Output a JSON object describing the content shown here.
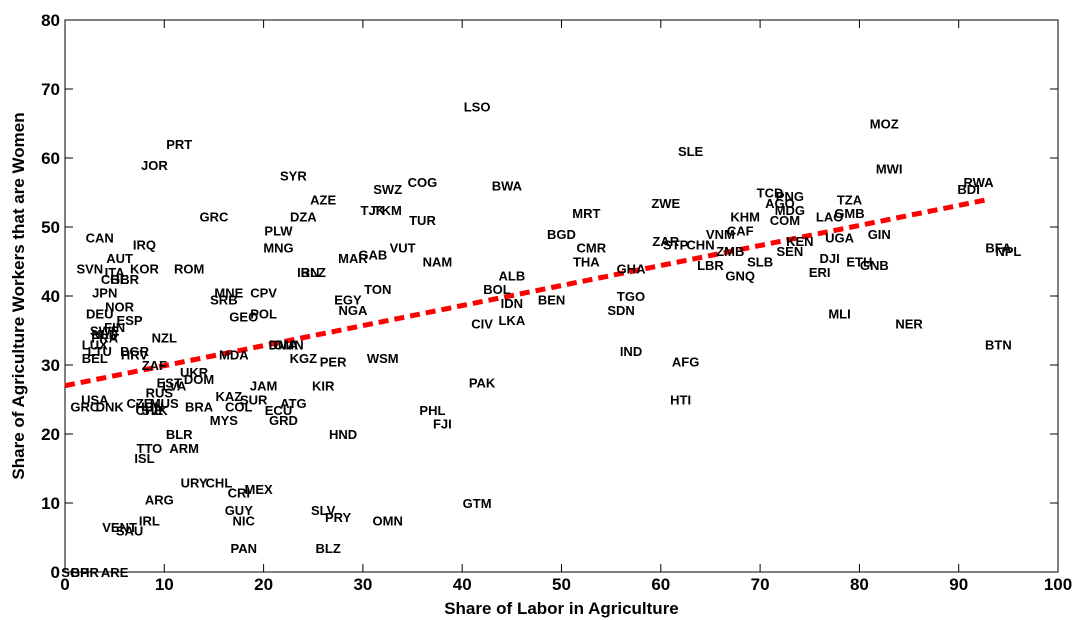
{
  "chart_data": {
    "type": "scatter",
    "title": "",
    "xlabel": "Share of Labor in Agriculture",
    "ylabel": "Share of Agriculture Workers that are Women",
    "xlim": [
      0,
      100
    ],
    "ylim": [
      0,
      80
    ],
    "xticks": [
      0,
      10,
      20,
      30,
      40,
      50,
      60,
      70,
      80,
      90,
      100
    ],
    "yticks": [
      0,
      10,
      20,
      30,
      40,
      50,
      60,
      70,
      80
    ],
    "grid": false,
    "legend": "none",
    "trendline": {
      "x": [
        0,
        93
      ],
      "y": [
        27,
        54
      ],
      "color": "#ff0000",
      "style": "dashed"
    },
    "points": [
      {
        "label": "LSO",
        "x": 41.5,
        "y": 67.5
      },
      {
        "label": "MOZ",
        "x": 82.5,
        "y": 65
      },
      {
        "label": "PRT",
        "x": 11.5,
        "y": 62
      },
      {
        "label": "SLE",
        "x": 63,
        "y": 61
      },
      {
        "label": "JOR",
        "x": 9,
        "y": 59
      },
      {
        "label": "MWI",
        "x": 83,
        "y": 58.5
      },
      {
        "label": "SYR",
        "x": 23,
        "y": 57.5
      },
      {
        "label": "COG",
        "x": 36,
        "y": 56.5
      },
      {
        "label": "RWA",
        "x": 92,
        "y": 56.5
      },
      {
        "label": "BDI",
        "x": 91,
        "y": 55.5
      },
      {
        "label": "BWA",
        "x": 44.5,
        "y": 56
      },
      {
        "label": "SWZ",
        "x": 32.5,
        "y": 55.5
      },
      {
        "label": "TCD",
        "x": 71,
        "y": 55
      },
      {
        "label": "AZE",
        "x": 26,
        "y": 54
      },
      {
        "label": "PNG",
        "x": 73,
        "y": 54.5
      },
      {
        "label": "ZWE",
        "x": 60.5,
        "y": 53.5
      },
      {
        "label": "AGO",
        "x": 72,
        "y": 53.5
      },
      {
        "label": "TZA",
        "x": 79,
        "y": 54
      },
      {
        "label": "TJK",
        "x": 31,
        "y": 52.5
      },
      {
        "label": "TKM",
        "x": 32.5,
        "y": 52.5
      },
      {
        "label": "MDG",
        "x": 73,
        "y": 52.5
      },
      {
        "label": "MRT",
        "x": 52.5,
        "y": 52
      },
      {
        "label": "GMB",
        "x": 79,
        "y": 52
      },
      {
        "label": "LAO",
        "x": 77,
        "y": 51.5
      },
      {
        "label": "DZA",
        "x": 24,
        "y": 51.5
      },
      {
        "label": "GRC",
        "x": 15,
        "y": 51.5
      },
      {
        "label": "KHM",
        "x": 68.5,
        "y": 51.5
      },
      {
        "label": "TUR",
        "x": 36,
        "y": 51
      },
      {
        "label": "COM",
        "x": 72.5,
        "y": 51
      },
      {
        "label": "PLW",
        "x": 21.5,
        "y": 49.5
      },
      {
        "label": "CAF",
        "x": 68,
        "y": 49.5
      },
      {
        "label": "GIN",
        "x": 82,
        "y": 49
      },
      {
        "label": "BGD",
        "x": 50,
        "y": 49
      },
      {
        "label": "CAN",
        "x": 3.5,
        "y": 48.5
      },
      {
        "label": "UGA",
        "x": 78,
        "y": 48.5
      },
      {
        "label": "VNM",
        "x": 66,
        "y": 49
      },
      {
        "label": "ZAR",
        "x": 60.5,
        "y": 48
      },
      {
        "label": "STP",
        "x": 61.5,
        "y": 47.5
      },
      {
        "label": "KEN",
        "x": 74,
        "y": 48
      },
      {
        "label": "CHN",
        "x": 64,
        "y": 47.5
      },
      {
        "label": "IRQ",
        "x": 8,
        "y": 47.5
      },
      {
        "label": "CMR",
        "x": 53,
        "y": 47
      },
      {
        "label": "MNG",
        "x": 21.5,
        "y": 47
      },
      {
        "label": "VUT",
        "x": 34,
        "y": 47
      },
      {
        "label": "BFA",
        "x": 94,
        "y": 47
      },
      {
        "label": "NPL",
        "x": 95,
        "y": 46.5
      },
      {
        "label": "ZMB",
        "x": 67,
        "y": 46.5
      },
      {
        "label": "SEN",
        "x": 73,
        "y": 46.5
      },
      {
        "label": "GAB",
        "x": 31,
        "y": 46
      },
      {
        "label": "MAR",
        "x": 29,
        "y": 45.5
      },
      {
        "label": "AUT",
        "x": 5.5,
        "y": 45.5
      },
      {
        "label": "DJI",
        "x": 77,
        "y": 45.5
      },
      {
        "label": "THA",
        "x": 52.5,
        "y": 45
      },
      {
        "label": "NAM",
        "x": 37.5,
        "y": 45
      },
      {
        "label": "SLB",
        "x": 70,
        "y": 45
      },
      {
        "label": "ETH",
        "x": 80,
        "y": 45
      },
      {
        "label": "GNB",
        "x": 81.5,
        "y": 44.5
      },
      {
        "label": "LBR",
        "x": 65,
        "y": 44.5
      },
      {
        "label": "GHA",
        "x": 57,
        "y": 44
      },
      {
        "label": "ROM",
        "x": 12.5,
        "y": 44
      },
      {
        "label": "SVN",
        "x": 2.5,
        "y": 44
      },
      {
        "label": "KOR",
        "x": 8,
        "y": 44
      },
      {
        "label": "ITA",
        "x": 5,
        "y": 43.5
      },
      {
        "label": "IRN",
        "x": 24.5,
        "y": 43.5
      },
      {
        "label": "BLZ",
        "x": 25,
        "y": 43.5
      },
      {
        "label": "ERI",
        "x": 76,
        "y": 43.5
      },
      {
        "label": "GNQ",
        "x": 68,
        "y": 43
      },
      {
        "label": "ALB",
        "x": 45,
        "y": 43
      },
      {
        "label": "CHE",
        "x": 5,
        "y": 42.5
      },
      {
        "label": "GBR",
        "x": 6,
        "y": 42.5
      },
      {
        "label": "BOL",
        "x": 43.5,
        "y": 41
      },
      {
        "label": "TON",
        "x": 31.5,
        "y": 41
      },
      {
        "label": "JPN",
        "x": 4,
        "y": 40.5
      },
      {
        "label": "MNE",
        "x": 16.5,
        "y": 40.5
      },
      {
        "label": "CPV",
        "x": 20,
        "y": 40.5
      },
      {
        "label": "TGO",
        "x": 57,
        "y": 40
      },
      {
        "label": "SRB",
        "x": 16,
        "y": 39.5
      },
      {
        "label": "BEN",
        "x": 49,
        "y": 39.5
      },
      {
        "label": "EGY",
        "x": 28.5,
        "y": 39.5
      },
      {
        "label": "IDN",
        "x": 45,
        "y": 39
      },
      {
        "label": "NOR",
        "x": 5.5,
        "y": 38.5
      },
      {
        "label": "SDN",
        "x": 56,
        "y": 38
      },
      {
        "label": "NGA",
        "x": 29,
        "y": 38
      },
      {
        "label": "DEU",
        "x": 3.5,
        "y": 37.5
      },
      {
        "label": "MLI",
        "x": 78,
        "y": 37.5
      },
      {
        "label": "POL",
        "x": 20,
        "y": 37.5
      },
      {
        "label": "GEO",
        "x": 18,
        "y": 37
      },
      {
        "label": "ESP",
        "x": 6.5,
        "y": 36.5
      },
      {
        "label": "LKA",
        "x": 45,
        "y": 36.5
      },
      {
        "label": "NER",
        "x": 85,
        "y": 36
      },
      {
        "label": "CIV",
        "x": 42,
        "y": 36
      },
      {
        "label": "FIN",
        "x": 5,
        "y": 35.5
      },
      {
        "label": "SWE",
        "x": 4,
        "y": 35
      },
      {
        "label": "NLD",
        "x": 4,
        "y": 34.5
      },
      {
        "label": "FRA",
        "x": 4,
        "y": 34
      },
      {
        "label": "NZL",
        "x": 10,
        "y": 34
      },
      {
        "label": "LUX",
        "x": 3,
        "y": 33
      },
      {
        "label": "OMN",
        "x": 22.5,
        "y": 33
      },
      {
        "label": "DMA",
        "x": 22,
        "y": 33
      },
      {
        "label": "BTN",
        "x": 94,
        "y": 33
      },
      {
        "label": "LTU",
        "x": 3.5,
        "y": 32
      },
      {
        "label": "BGR",
        "x": 7,
        "y": 32
      },
      {
        "label": "IND",
        "x": 57,
        "y": 32
      },
      {
        "label": "HRV",
        "x": 7,
        "y": 31.5
      },
      {
        "label": "MDA",
        "x": 17,
        "y": 31.5
      },
      {
        "label": "BEL",
        "x": 3,
        "y": 31
      },
      {
        "label": "KGZ",
        "x": 24,
        "y": 31
      },
      {
        "label": "AFG",
        "x": 62.5,
        "y": 30.5
      },
      {
        "label": "PER",
        "x": 27,
        "y": 30.5
      },
      {
        "label": "WSM",
        "x": 32,
        "y": 31
      },
      {
        "label": "ZAF",
        "x": 9,
        "y": 30
      },
      {
        "label": "UKR",
        "x": 13,
        "y": 29
      },
      {
        "label": "DOM",
        "x": 13.5,
        "y": 28
      },
      {
        "label": "EST",
        "x": 10.5,
        "y": 27.5
      },
      {
        "label": "LVA",
        "x": 11,
        "y": 27
      },
      {
        "label": "PAK",
        "x": 42,
        "y": 27.5
      },
      {
        "label": "JAM",
        "x": 20,
        "y": 27
      },
      {
        "label": "KIR",
        "x": 26,
        "y": 27
      },
      {
        "label": "RUS",
        "x": 9.5,
        "y": 26
      },
      {
        "label": "KAZ",
        "x": 16.5,
        "y": 25.5
      },
      {
        "label": "USA",
        "x": 3,
        "y": 25
      },
      {
        "label": "HTI",
        "x": 62,
        "y": 25
      },
      {
        "label": "SUR",
        "x": 19,
        "y": 25
      },
      {
        "label": "ATG",
        "x": 23,
        "y": 24.5
      },
      {
        "label": "CZE",
        "x": 7.5,
        "y": 24.5
      },
      {
        "label": "MUS",
        "x": 10,
        "y": 24.5
      },
      {
        "label": "HUN",
        "x": 8.5,
        "y": 24
      },
      {
        "label": "BRA",
        "x": 13.5,
        "y": 24
      },
      {
        "label": "COL",
        "x": 17.5,
        "y": 24
      },
      {
        "label": "MYS",
        "x": 16,
        "y": 22
      },
      {
        "label": "GRD",
        "x": 22,
        "y": 22
      },
      {
        "label": "CHE",
        "x": 8.5,
        "y": 23.5
      },
      {
        "label": "SVK",
        "x": 9,
        "y": 23.5
      },
      {
        "label": "PHL",
        "x": 37,
        "y": 23.5
      },
      {
        "label": "GRC",
        "x": 2,
        "y": 24
      },
      {
        "label": "DNK",
        "x": 4.5,
        "y": 24
      },
      {
        "label": "ECU",
        "x": 21.5,
        "y": 23.5
      },
      {
        "label": "FJI",
        "x": 38,
        "y": 21.5
      },
      {
        "label": "HND",
        "x": 28,
        "y": 20
      },
      {
        "label": "BLR",
        "x": 11.5,
        "y": 20
      },
      {
        "label": "ARM",
        "x": 12,
        "y": 18
      },
      {
        "label": "TTO",
        "x": 8.5,
        "y": 18
      },
      {
        "label": "ISL",
        "x": 8,
        "y": 16.5
      },
      {
        "label": "URY",
        "x": 13,
        "y": 13
      },
      {
        "label": "CHL",
        "x": 15.5,
        "y": 13
      },
      {
        "label": "CRI",
        "x": 17.5,
        "y": 11.5
      },
      {
        "label": "MEX",
        "x": 19.5,
        "y": 12
      },
      {
        "label": "ARG",
        "x": 9.5,
        "y": 10.5
      },
      {
        "label": "GTM",
        "x": 41.5,
        "y": 10
      },
      {
        "label": "GUY",
        "x": 17.5,
        "y": 9
      },
      {
        "label": "SLV",
        "x": 26,
        "y": 9
      },
      {
        "label": "PRY",
        "x": 27.5,
        "y": 8
      },
      {
        "label": "IRL",
        "x": 8.5,
        "y": 7.5
      },
      {
        "label": "NIC",
        "x": 18,
        "y": 7.5
      },
      {
        "label": "OMN",
        "x": 32.5,
        "y": 7.5
      },
      {
        "label": "VENT",
        "x": 5.5,
        "y": 6.5
      },
      {
        "label": "SAU",
        "x": 6.5,
        "y": 6
      },
      {
        "label": "PAN",
        "x": 18,
        "y": 3.5
      },
      {
        "label": "BLZ",
        "x": 26.5,
        "y": 3.5
      },
      {
        "label": "SGP",
        "x": 1,
        "y": 0
      },
      {
        "label": "BHR",
        "x": 2,
        "y": 0
      },
      {
        "label": "ARE",
        "x": 5,
        "y": 0
      }
    ]
  }
}
